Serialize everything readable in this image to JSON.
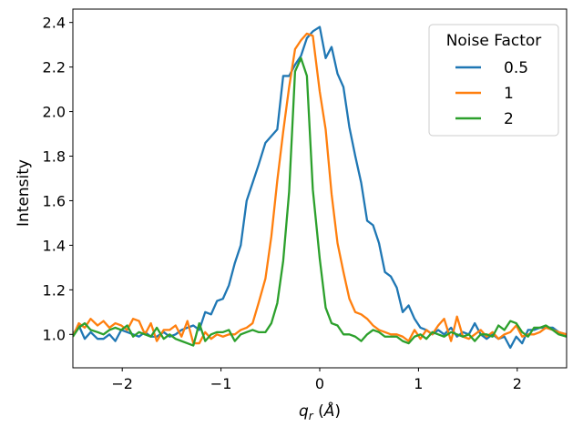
{
  "chart_data": {
    "type": "line",
    "xlabel": "q_r (Å)",
    "ylabel": "Intensity",
    "xlim": [
      -2.5,
      2.5
    ],
    "ylim": [
      0.85,
      2.46
    ],
    "xticks": [
      -2,
      -1,
      0,
      1,
      2
    ],
    "yticks": [
      1.0,
      1.2,
      1.4,
      1.6,
      1.8,
      2.0,
      2.2,
      2.4
    ],
    "xtick_labels": [
      "−2",
      "−1",
      "0",
      "1",
      "2"
    ],
    "ytick_labels": [
      "1.0",
      "1.2",
      "1.4",
      "1.6",
      "1.8",
      "2.0",
      "2.2",
      "2.4"
    ],
    "grid": false,
    "legend": {
      "title": "Noise Factor",
      "placement": "top-right"
    },
    "series": [
      {
        "name": "0.5",
        "color": "#1f77b4",
        "points": [
          [
            -2.5,
            1.0
          ],
          [
            -2.44,
            1.04
          ],
          [
            -2.38,
            0.98
          ],
          [
            -2.32,
            1.01
          ],
          [
            -2.25,
            0.98
          ],
          [
            -2.19,
            0.98
          ],
          [
            -2.13,
            1.0
          ],
          [
            -2.07,
            0.97
          ],
          [
            -2.01,
            1.02
          ],
          [
            -1.95,
            1.01
          ],
          [
            -1.89,
            1.0
          ],
          [
            -1.83,
            0.99
          ],
          [
            -1.77,
            1.01
          ],
          [
            -1.71,
            0.99
          ],
          [
            -1.65,
            0.99
          ],
          [
            -1.58,
            1.01
          ],
          [
            -1.52,
            0.99
          ],
          [
            -1.46,
            1.0
          ],
          [
            -1.4,
            1.02
          ],
          [
            -1.34,
            1.03
          ],
          [
            -1.28,
            1.04
          ],
          [
            -1.22,
            1.02
          ],
          [
            -1.16,
            1.1
          ],
          [
            -1.1,
            1.09
          ],
          [
            -1.04,
            1.15
          ],
          [
            -0.98,
            1.16
          ],
          [
            -0.92,
            1.22
          ],
          [
            -0.86,
            1.32
          ],
          [
            -0.8,
            1.4
          ],
          [
            -0.74,
            1.6
          ],
          [
            -0.68,
            1.68
          ],
          [
            -0.62,
            1.76
          ],
          [
            -0.55,
            1.86
          ],
          [
            -0.49,
            1.89
          ],
          [
            -0.43,
            1.92
          ],
          [
            -0.37,
            2.16
          ],
          [
            -0.31,
            2.16
          ],
          [
            -0.25,
            2.21
          ],
          [
            -0.19,
            2.25
          ],
          [
            -0.13,
            2.33
          ],
          [
            -0.07,
            2.36
          ],
          [
            0.0,
            2.38
          ],
          [
            0.06,
            2.24
          ],
          [
            0.12,
            2.29
          ],
          [
            0.18,
            2.17
          ],
          [
            0.24,
            2.11
          ],
          [
            0.3,
            1.93
          ],
          [
            0.36,
            1.8
          ],
          [
            0.42,
            1.68
          ],
          [
            0.48,
            1.51
          ],
          [
            0.54,
            1.49
          ],
          [
            0.6,
            1.41
          ],
          [
            0.66,
            1.28
          ],
          [
            0.72,
            1.26
          ],
          [
            0.78,
            1.21
          ],
          [
            0.84,
            1.1
          ],
          [
            0.9,
            1.13
          ],
          [
            0.96,
            1.07
          ],
          [
            1.02,
            1.03
          ],
          [
            1.08,
            1.02
          ],
          [
            1.14,
            1.0
          ],
          [
            1.2,
            1.02
          ],
          [
            1.26,
            1.0
          ],
          [
            1.33,
            1.03
          ],
          [
            1.39,
            0.99
          ],
          [
            1.45,
            1.01
          ],
          [
            1.51,
            1.0
          ],
          [
            1.57,
            1.05
          ],
          [
            1.63,
            1.0
          ],
          [
            1.69,
            0.98
          ],
          [
            1.75,
            1.0
          ],
          [
            1.81,
            0.98
          ],
          [
            1.87,
            0.99
          ],
          [
            1.93,
            0.94
          ],
          [
            1.99,
            0.99
          ],
          [
            2.05,
            0.96
          ],
          [
            2.11,
            1.02
          ],
          [
            2.17,
            1.02
          ],
          [
            2.23,
            1.03
          ],
          [
            2.29,
            1.03
          ],
          [
            2.36,
            1.03
          ],
          [
            2.42,
            1.01
          ],
          [
            2.5,
            1.0
          ]
        ]
      },
      {
        "name": "1",
        "color": "#ff7f0e",
        "points": [
          [
            -2.5,
            0.99
          ],
          [
            -2.44,
            1.05
          ],
          [
            -2.38,
            1.03
          ],
          [
            -2.32,
            1.07
          ],
          [
            -2.25,
            1.04
          ],
          [
            -2.19,
            1.06
          ],
          [
            -2.13,
            1.03
          ],
          [
            -2.07,
            1.05
          ],
          [
            -2.01,
            1.04
          ],
          [
            -1.95,
            1.02
          ],
          [
            -1.89,
            1.07
          ],
          [
            -1.83,
            1.06
          ],
          [
            -1.77,
            1.0
          ],
          [
            -1.71,
            1.05
          ],
          [
            -1.65,
            0.97
          ],
          [
            -1.58,
            1.02
          ],
          [
            -1.52,
            1.02
          ],
          [
            -1.46,
            1.04
          ],
          [
            -1.4,
            0.99
          ],
          [
            -1.34,
            1.06
          ],
          [
            -1.28,
            0.96
          ],
          [
            -1.22,
            0.96
          ],
          [
            -1.16,
            1.01
          ],
          [
            -1.1,
            0.98
          ],
          [
            -1.04,
            1.0
          ],
          [
            -0.98,
            0.99
          ],
          [
            -0.92,
            1.0
          ],
          [
            -0.86,
            1.0
          ],
          [
            -0.8,
            1.02
          ],
          [
            -0.74,
            1.03
          ],
          [
            -0.68,
            1.05
          ],
          [
            -0.62,
            1.14
          ],
          [
            -0.55,
            1.25
          ],
          [
            -0.49,
            1.44
          ],
          [
            -0.43,
            1.69
          ],
          [
            -0.37,
            1.91
          ],
          [
            -0.31,
            2.11
          ],
          [
            -0.25,
            2.28
          ],
          [
            -0.19,
            2.32
          ],
          [
            -0.13,
            2.35
          ],
          [
            -0.07,
            2.34
          ],
          [
            0.0,
            2.09
          ],
          [
            0.06,
            1.92
          ],
          [
            0.12,
            1.63
          ],
          [
            0.18,
            1.41
          ],
          [
            0.24,
            1.28
          ],
          [
            0.3,
            1.16
          ],
          [
            0.36,
            1.1
          ],
          [
            0.42,
            1.09
          ],
          [
            0.48,
            1.07
          ],
          [
            0.54,
            1.04
          ],
          [
            0.6,
            1.02
          ],
          [
            0.66,
            1.01
          ],
          [
            0.72,
            1.0
          ],
          [
            0.78,
            1.0
          ],
          [
            0.84,
            0.99
          ],
          [
            0.9,
            0.97
          ],
          [
            0.96,
            1.02
          ],
          [
            1.02,
            0.98
          ],
          [
            1.08,
            1.02
          ],
          [
            1.14,
            1.0
          ],
          [
            1.2,
            1.04
          ],
          [
            1.26,
            1.07
          ],
          [
            1.33,
            0.97
          ],
          [
            1.39,
            1.08
          ],
          [
            1.45,
            0.99
          ],
          [
            1.51,
            0.98
          ],
          [
            1.57,
            1.0
          ],
          [
            1.63,
            1.02
          ],
          [
            1.69,
            0.99
          ],
          [
            1.75,
            1.01
          ],
          [
            1.81,
            0.98
          ],
          [
            1.87,
            1.0
          ],
          [
            1.93,
            1.01
          ],
          [
            1.99,
            1.04
          ],
          [
            2.05,
            0.99
          ],
          [
            2.11,
            1.0
          ],
          [
            2.17,
            1.0
          ],
          [
            2.23,
            1.01
          ],
          [
            2.29,
            1.03
          ],
          [
            2.36,
            1.02
          ],
          [
            2.42,
            1.01
          ],
          [
            2.5,
            1.0
          ]
        ]
      },
      {
        "name": "2",
        "color": "#2ca02c",
        "points": [
          [
            -2.5,
            0.99
          ],
          [
            -2.44,
            1.03
          ],
          [
            -2.38,
            1.05
          ],
          [
            -2.32,
            1.02
          ],
          [
            -2.25,
            1.01
          ],
          [
            -2.19,
            1.0
          ],
          [
            -2.13,
            1.02
          ],
          [
            -2.07,
            1.03
          ],
          [
            -2.01,
            1.02
          ],
          [
            -1.95,
            1.04
          ],
          [
            -1.89,
            0.99
          ],
          [
            -1.83,
            1.01
          ],
          [
            -1.77,
            1.0
          ],
          [
            -1.71,
            0.99
          ],
          [
            -1.65,
            1.03
          ],
          [
            -1.58,
            0.98
          ],
          [
            -1.52,
            1.0
          ],
          [
            -1.46,
            0.98
          ],
          [
            -1.4,
            0.97
          ],
          [
            -1.34,
            0.96
          ],
          [
            -1.28,
            0.95
          ],
          [
            -1.22,
            1.05
          ],
          [
            -1.16,
            0.97
          ],
          [
            -1.1,
            1.0
          ],
          [
            -1.04,
            1.01
          ],
          [
            -0.98,
            1.01
          ],
          [
            -0.92,
            1.02
          ],
          [
            -0.86,
            0.97
          ],
          [
            -0.8,
            1.0
          ],
          [
            -0.74,
            1.01
          ],
          [
            -0.68,
            1.02
          ],
          [
            -0.62,
            1.01
          ],
          [
            -0.55,
            1.01
          ],
          [
            -0.49,
            1.05
          ],
          [
            -0.43,
            1.14
          ],
          [
            -0.37,
            1.33
          ],
          [
            -0.31,
            1.64
          ],
          [
            -0.25,
            2.18
          ],
          [
            -0.19,
            2.24
          ],
          [
            -0.13,
            2.16
          ],
          [
            -0.07,
            1.65
          ],
          [
            0.0,
            1.34
          ],
          [
            0.06,
            1.12
          ],
          [
            0.12,
            1.05
          ],
          [
            0.18,
            1.04
          ],
          [
            0.24,
            1.0
          ],
          [
            0.3,
            1.0
          ],
          [
            0.36,
            0.99
          ],
          [
            0.42,
            0.97
          ],
          [
            0.48,
            1.0
          ],
          [
            0.54,
            1.02
          ],
          [
            0.6,
            1.01
          ],
          [
            0.66,
            0.99
          ],
          [
            0.72,
            0.99
          ],
          [
            0.78,
            0.99
          ],
          [
            0.84,
            0.97
          ],
          [
            0.9,
            0.96
          ],
          [
            0.96,
            0.99
          ],
          [
            1.02,
            1.0
          ],
          [
            1.08,
            0.98
          ],
          [
            1.14,
            1.01
          ],
          [
            1.2,
            1.0
          ],
          [
            1.26,
            0.99
          ],
          [
            1.33,
            1.01
          ],
          [
            1.39,
            1.0
          ],
          [
            1.45,
            0.99
          ],
          [
            1.51,
            1.0
          ],
          [
            1.57,
            0.97
          ],
          [
            1.63,
            1.0
          ],
          [
            1.69,
            1.0
          ],
          [
            1.75,
            0.99
          ],
          [
            1.81,
            1.04
          ],
          [
            1.87,
            1.02
          ],
          [
            1.93,
            1.06
          ],
          [
            1.99,
            1.05
          ],
          [
            2.05,
            1.01
          ],
          [
            2.11,
            0.99
          ],
          [
            2.17,
            1.03
          ],
          [
            2.23,
            1.03
          ],
          [
            2.29,
            1.04
          ],
          [
            2.36,
            1.02
          ],
          [
            2.42,
            1.0
          ],
          [
            2.5,
            0.99
          ]
        ]
      }
    ]
  }
}
